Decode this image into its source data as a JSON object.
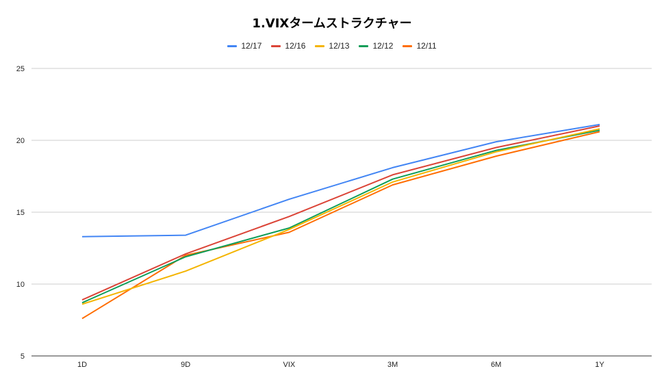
{
  "chart_data": {
    "type": "line",
    "title": "1.VIXタームストラクチャー",
    "categories": [
      "1D",
      "9D",
      "VIX",
      "3M",
      "6M",
      "1Y"
    ],
    "ylim": [
      5,
      25
    ],
    "yticks": [
      5,
      10,
      15,
      20,
      25
    ],
    "grid": true,
    "legend_position": "top",
    "series": [
      {
        "name": "12/17",
        "color": "#4285f4",
        "values": [
          13.3,
          13.4,
          15.9,
          18.1,
          19.9,
          21.1
        ]
      },
      {
        "name": "12/16",
        "color": "#db4437",
        "values": [
          8.9,
          12.1,
          14.7,
          17.6,
          19.5,
          21.0
        ]
      },
      {
        "name": "12/13",
        "color": "#f4b400",
        "values": [
          8.6,
          10.9,
          13.8,
          17.1,
          19.2,
          20.8
        ]
      },
      {
        "name": "12/12",
        "color": "#0f9d58",
        "values": [
          8.7,
          11.9,
          13.9,
          17.3,
          19.3,
          20.7
        ]
      },
      {
        "name": "12/11",
        "color": "#ff6d01",
        "values": [
          7.6,
          12.0,
          13.6,
          16.9,
          18.9,
          20.6
        ]
      }
    ]
  }
}
